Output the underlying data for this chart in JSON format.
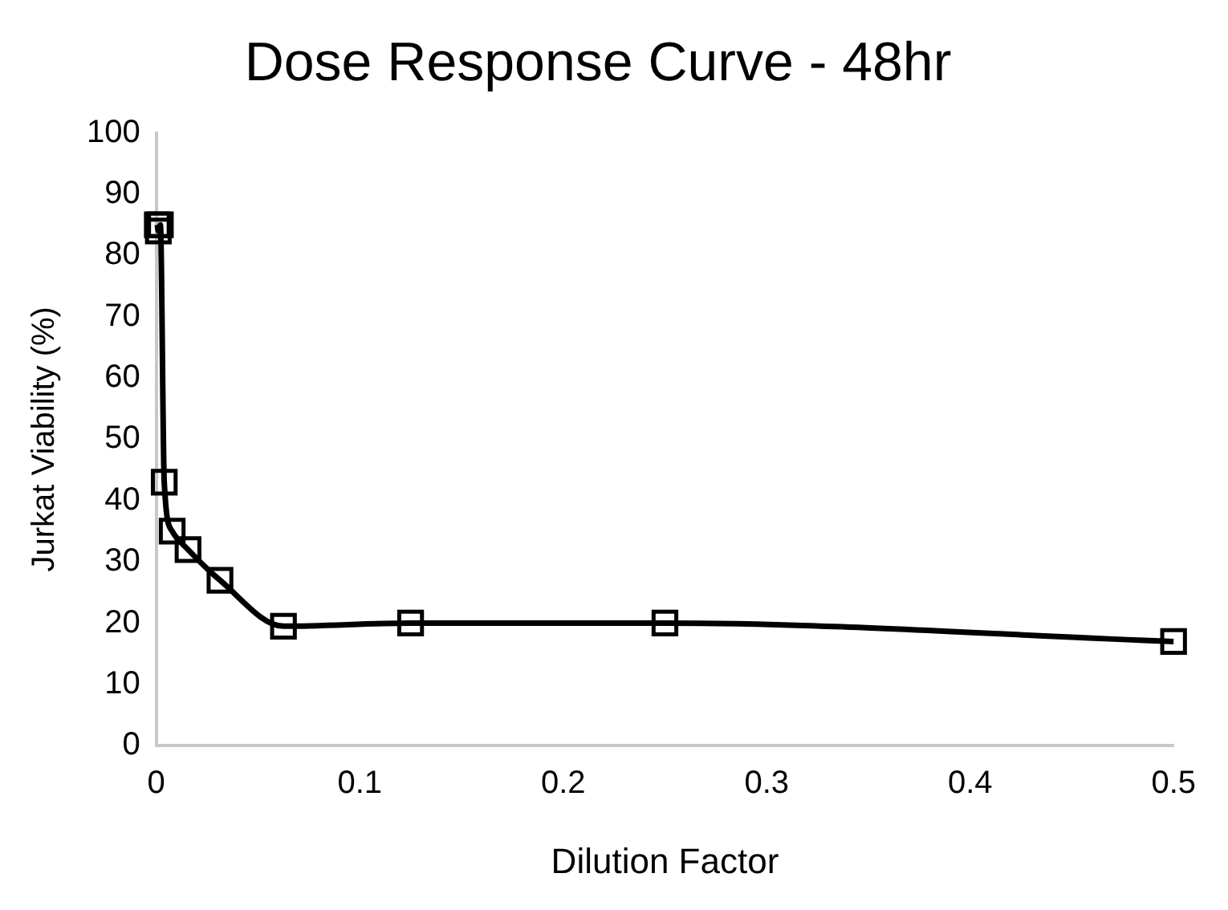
{
  "chart_data": {
    "type": "line",
    "title": "Dose Response Curve - 48hr",
    "xlabel": "Dilution Factor",
    "ylabel": "Jurkat Viability (%)",
    "series": [
      {
        "color": "#000000",
        "x": [
          0.0005,
          0.001,
          0.002,
          0.0039,
          0.0078,
          0.0156,
          0.0313,
          0.0625,
          0.125,
          0.25,
          0.5
        ],
        "values": [
          85,
          84,
          85,
          43,
          35,
          32,
          27,
          19.5,
          20,
          20,
          17
        ]
      }
    ],
    "xlim": [
      0,
      0.5
    ],
    "xticks": [
      0,
      0.1,
      0.2,
      0.3,
      0.4,
      0.5
    ],
    "ylim": [
      0,
      100
    ],
    "yticks": [
      0,
      10,
      20,
      30,
      40,
      50,
      60,
      70,
      80,
      90,
      100
    ],
    "grid": false,
    "legend": false,
    "marker": "square",
    "line_style": "solid"
  }
}
